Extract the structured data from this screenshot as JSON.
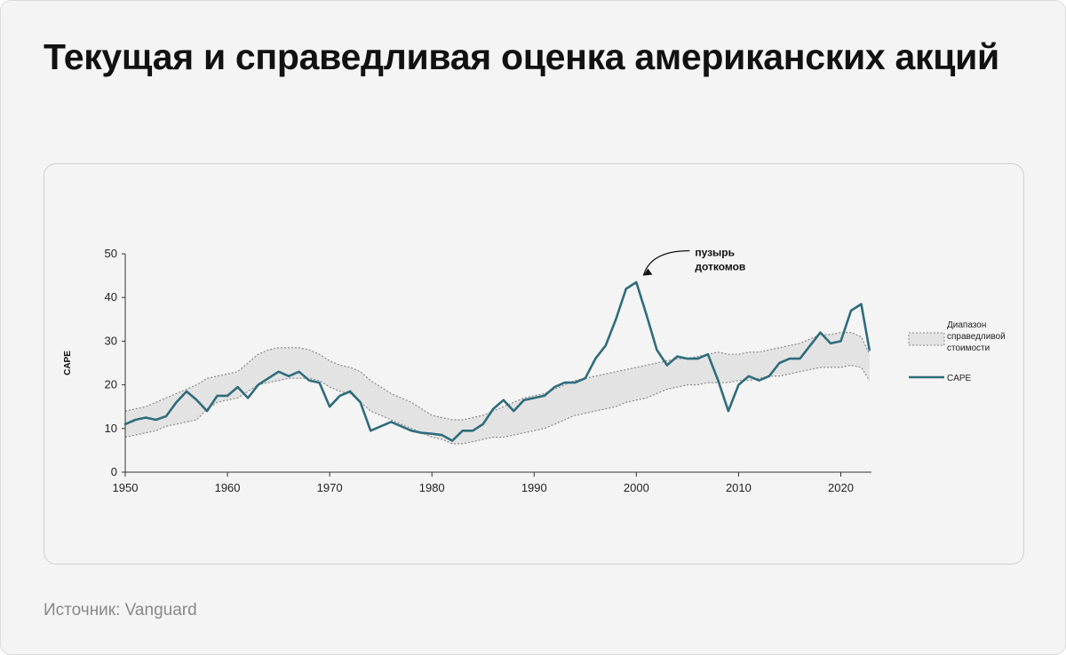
{
  "title": "Текущая и справедливая оценка американских акций",
  "source": "Источник: Vanguard",
  "colors": {
    "cape_line": "#2f6c7c",
    "band_fill": "#e3e3e3",
    "band_border": "#8a8a8a",
    "axis": "#333333"
  },
  "chart_data": {
    "type": "line",
    "title": "",
    "xlabel": "",
    "ylabel": "CAPE",
    "xlim": [
      1950,
      2023
    ],
    "ylim": [
      0,
      50
    ],
    "x_ticks": [
      1950,
      1960,
      1970,
      1980,
      1990,
      2000,
      2010,
      2020
    ],
    "y_ticks": [
      0,
      10,
      20,
      30,
      40,
      50
    ],
    "grid": false,
    "legend_position": "right",
    "legend": [
      {
        "label": "Диапазон справедливой стоимости",
        "kind": "band"
      },
      {
        "label": "CAPE",
        "kind": "line"
      }
    ],
    "annotations": [
      {
        "text_lines": [
          "пузырь",
          "доткомов"
        ],
        "x": 2000,
        "y": 44.2
      }
    ],
    "series": [
      {
        "name": "CAPE",
        "kind": "line",
        "points": [
          [
            1950,
            11.0
          ],
          [
            1951,
            12.0
          ],
          [
            1952,
            12.5
          ],
          [
            1953,
            12.0
          ],
          [
            1954,
            12.8
          ],
          [
            1955,
            16.0
          ],
          [
            1956,
            18.5
          ],
          [
            1957,
            16.5
          ],
          [
            1958,
            14.0
          ],
          [
            1959,
            17.5
          ],
          [
            1960,
            17.5
          ],
          [
            1961,
            19.5
          ],
          [
            1962,
            17.0
          ],
          [
            1963,
            20.0
          ],
          [
            1964,
            21.5
          ],
          [
            1965,
            23.0
          ],
          [
            1966,
            22.0
          ],
          [
            1967,
            23.0
          ],
          [
            1968,
            21.0
          ],
          [
            1969,
            20.5
          ],
          [
            1970,
            15.0
          ],
          [
            1971,
            17.5
          ],
          [
            1972,
            18.5
          ],
          [
            1973,
            16.0
          ],
          [
            1974,
            9.5
          ],
          [
            1975,
            10.5
          ],
          [
            1976,
            11.5
          ],
          [
            1977,
            10.5
          ],
          [
            1978,
            9.5
          ],
          [
            1979,
            9.0
          ],
          [
            1980,
            8.8
          ],
          [
            1981,
            8.5
          ],
          [
            1982,
            7.2
          ],
          [
            1983,
            9.5
          ],
          [
            1984,
            9.5
          ],
          [
            1985,
            11.0
          ],
          [
            1986,
            14.5
          ],
          [
            1987,
            16.5
          ],
          [
            1988,
            14.0
          ],
          [
            1989,
            16.5
          ],
          [
            1990,
            17.0
          ],
          [
            1991,
            17.5
          ],
          [
            1992,
            19.5
          ],
          [
            1993,
            20.5
          ],
          [
            1994,
            20.5
          ],
          [
            1995,
            21.5
          ],
          [
            1996,
            26.0
          ],
          [
            1997,
            29.0
          ],
          [
            1998,
            35.0
          ],
          [
            1999,
            42.0
          ],
          [
            2000,
            43.5
          ],
          [
            2001,
            36.0
          ],
          [
            2002,
            28.0
          ],
          [
            2003,
            24.5
          ],
          [
            2004,
            26.5
          ],
          [
            2005,
            26.0
          ],
          [
            2006,
            26.0
          ],
          [
            2007,
            27.0
          ],
          [
            2008,
            21.0
          ],
          [
            2009,
            14.0
          ],
          [
            2010,
            20.0
          ],
          [
            2011,
            22.0
          ],
          [
            2012,
            21.0
          ],
          [
            2013,
            22.0
          ],
          [
            2014,
            25.0
          ],
          [
            2015,
            26.0
          ],
          [
            2016,
            26.0
          ],
          [
            2017,
            29.0
          ],
          [
            2018,
            32.0
          ],
          [
            2019,
            29.5
          ],
          [
            2020,
            30.0
          ],
          [
            2021,
            37.0
          ],
          [
            2022,
            38.5
          ],
          [
            2022.8,
            28.0
          ]
        ]
      },
      {
        "name": "Диапазон справедливой стоимости",
        "kind": "band",
        "upper": [
          [
            1950,
            14.0
          ],
          [
            1951,
            14.5
          ],
          [
            1952,
            15.0
          ],
          [
            1953,
            16.0
          ],
          [
            1954,
            17.0
          ],
          [
            1955,
            18.0
          ],
          [
            1956,
            19.0
          ],
          [
            1957,
            20.0
          ],
          [
            1958,
            21.5
          ],
          [
            1959,
            22.0
          ],
          [
            1960,
            22.5
          ],
          [
            1961,
            23.0
          ],
          [
            1962,
            25.0
          ],
          [
            1963,
            27.0
          ],
          [
            1964,
            28.0
          ],
          [
            1965,
            28.5
          ],
          [
            1966,
            28.5
          ],
          [
            1967,
            28.5
          ],
          [
            1968,
            28.0
          ],
          [
            1969,
            27.0
          ],
          [
            1970,
            25.5
          ],
          [
            1971,
            24.5
          ],
          [
            1972,
            24.0
          ],
          [
            1973,
            23.0
          ],
          [
            1974,
            21.0
          ],
          [
            1975,
            19.5
          ],
          [
            1976,
            18.0
          ],
          [
            1977,
            17.0
          ],
          [
            1978,
            16.0
          ],
          [
            1979,
            14.5
          ],
          [
            1980,
            13.0
          ],
          [
            1981,
            12.5
          ],
          [
            1982,
            12.0
          ],
          [
            1983,
            12.0
          ],
          [
            1984,
            12.5
          ],
          [
            1985,
            13.0
          ],
          [
            1986,
            14.0
          ],
          [
            1987,
            15.0
          ],
          [
            1988,
            16.0
          ],
          [
            1989,
            17.0
          ],
          [
            1990,
            17.5
          ],
          [
            1991,
            18.0
          ],
          [
            1992,
            19.0
          ],
          [
            1993,
            20.0
          ],
          [
            1994,
            21.0
          ],
          [
            1995,
            21.5
          ],
          [
            1996,
            22.0
          ],
          [
            1997,
            22.5
          ],
          [
            1998,
            23.0
          ],
          [
            1999,
            23.5
          ],
          [
            2000,
            24.0
          ],
          [
            2001,
            24.5
          ],
          [
            2002,
            25.0
          ],
          [
            2003,
            25.5
          ],
          [
            2004,
            26.0
          ],
          [
            2005,
            26.0
          ],
          [
            2006,
            26.5
          ],
          [
            2007,
            27.0
          ],
          [
            2008,
            27.5
          ],
          [
            2009,
            27.0
          ],
          [
            2010,
            27.0
          ],
          [
            2011,
            27.5
          ],
          [
            2012,
            27.5
          ],
          [
            2013,
            28.0
          ],
          [
            2014,
            28.5
          ],
          [
            2015,
            29.0
          ],
          [
            2016,
            29.5
          ],
          [
            2017,
            30.5
          ],
          [
            2018,
            31.5
          ],
          [
            2019,
            31.5
          ],
          [
            2020,
            32.0
          ],
          [
            2021,
            32.0
          ],
          [
            2022,
            31.0
          ],
          [
            2022.8,
            27.0
          ]
        ],
        "lower": [
          [
            1950,
            8.0
          ],
          [
            1951,
            8.5
          ],
          [
            1952,
            9.0
          ],
          [
            1953,
            9.5
          ],
          [
            1954,
            10.5
          ],
          [
            1955,
            11.0
          ],
          [
            1956,
            11.5
          ],
          [
            1957,
            12.0
          ],
          [
            1958,
            14.5
          ],
          [
            1959,
            16.0
          ],
          [
            1960,
            16.5
          ],
          [
            1961,
            17.0
          ],
          [
            1962,
            18.5
          ],
          [
            1963,
            20.0
          ],
          [
            1964,
            20.5
          ],
          [
            1965,
            21.0
          ],
          [
            1966,
            21.5
          ],
          [
            1967,
            21.5
          ],
          [
            1968,
            21.5
          ],
          [
            1969,
            21.0
          ],
          [
            1970,
            19.5
          ],
          [
            1971,
            18.5
          ],
          [
            1972,
            18.0
          ],
          [
            1973,
            16.0
          ],
          [
            1974,
            14.0
          ],
          [
            1975,
            13.0
          ],
          [
            1976,
            12.0
          ],
          [
            1977,
            11.0
          ],
          [
            1978,
            10.0
          ],
          [
            1979,
            9.0
          ],
          [
            1980,
            8.0
          ],
          [
            1981,
            7.5
          ],
          [
            1982,
            6.5
          ],
          [
            1983,
            6.5
          ],
          [
            1984,
            7.0
          ],
          [
            1985,
            7.5
          ],
          [
            1986,
            8.0
          ],
          [
            1987,
            8.0
          ],
          [
            1988,
            8.5
          ],
          [
            1989,
            9.0
          ],
          [
            1990,
            9.5
          ],
          [
            1991,
            10.0
          ],
          [
            1992,
            11.0
          ],
          [
            1993,
            12.0
          ],
          [
            1994,
            13.0
          ],
          [
            1995,
            13.5
          ],
          [
            1996,
            14.0
          ],
          [
            1997,
            14.5
          ],
          [
            1998,
            15.0
          ],
          [
            1999,
            16.0
          ],
          [
            2000,
            16.5
          ],
          [
            2001,
            17.0
          ],
          [
            2002,
            18.0
          ],
          [
            2003,
            19.0
          ],
          [
            2004,
            19.5
          ],
          [
            2005,
            20.0
          ],
          [
            2006,
            20.0
          ],
          [
            2007,
            20.5
          ],
          [
            2008,
            20.5
          ],
          [
            2009,
            20.5
          ],
          [
            2010,
            21.0
          ],
          [
            2011,
            21.0
          ],
          [
            2012,
            21.5
          ],
          [
            2013,
            22.0
          ],
          [
            2014,
            22.0
          ],
          [
            2015,
            22.5
          ],
          [
            2016,
            23.0
          ],
          [
            2017,
            23.5
          ],
          [
            2018,
            24.0
          ],
          [
            2019,
            24.0
          ],
          [
            2020,
            24.0
          ],
          [
            2021,
            24.5
          ],
          [
            2022,
            24.0
          ],
          [
            2022.8,
            21.0
          ]
        ]
      }
    ]
  }
}
